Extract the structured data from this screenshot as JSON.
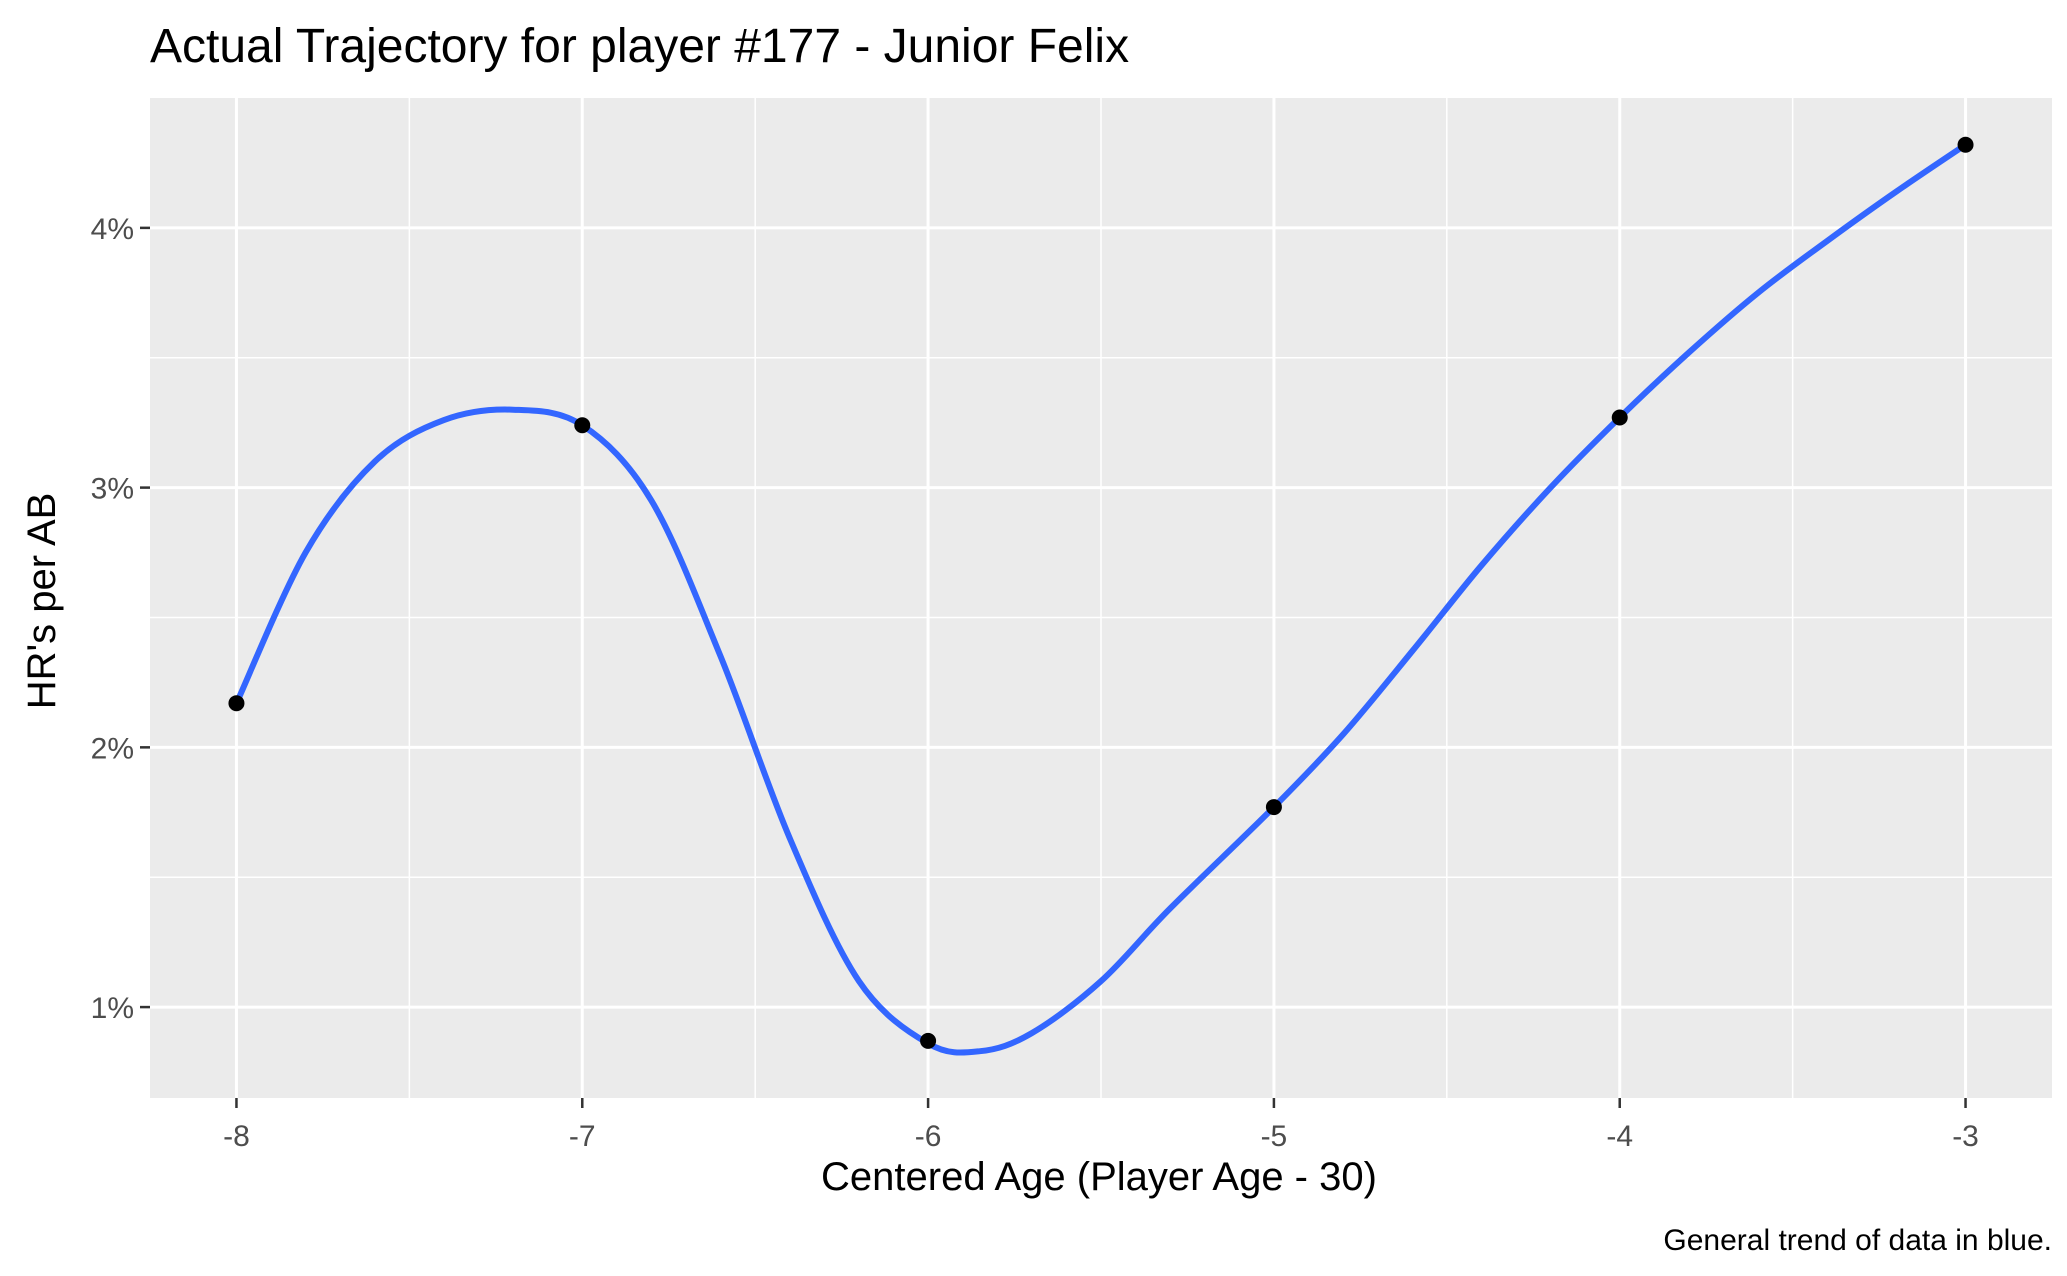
{
  "chart_data": {
    "type": "scatter",
    "title": "Actual Trajectory for player #177 - Junior Felix",
    "xlabel": "Centered Age (Player Age - 30)",
    "ylabel": "HR's per AB",
    "caption": "General trend of data in blue.",
    "xlim": [
      -8.25,
      -2.75
    ],
    "ylim": [
      0.65,
      4.5
    ],
    "x_ticks": [
      -8,
      -7,
      -6,
      -5,
      -4,
      -3
    ],
    "x_tick_labels": [
      "-8",
      "-7",
      "-6",
      "-5",
      "-4",
      "-3"
    ],
    "y_ticks": [
      1,
      2,
      3,
      4
    ],
    "y_tick_labels": [
      "1%",
      "2%",
      "3%",
      "4%"
    ],
    "y_unit": "percent",
    "grid": true,
    "points": [
      {
        "x": -8,
        "y": 2.17
      },
      {
        "x": -7,
        "y": 3.24
      },
      {
        "x": -6,
        "y": 0.87
      },
      {
        "x": -5,
        "y": 1.77
      },
      {
        "x": -4,
        "y": 3.27
      },
      {
        "x": -3,
        "y": 4.32
      }
    ],
    "trend": {
      "color": "#3366FF",
      "description": "General trend",
      "x": [
        -8,
        -7.8,
        -7.6,
        -7.4,
        -7.2,
        -7.0,
        -6.8,
        -6.6,
        -6.4,
        -6.2,
        -6.0,
        -5.85,
        -5.7,
        -5.5,
        -5.3,
        -5.0,
        -4.8,
        -4.6,
        -4.4,
        -4.2,
        -4.0,
        -3.8,
        -3.6,
        -3.4,
        -3.2,
        -3.0
      ],
      "y": [
        2.17,
        2.75,
        3.1,
        3.26,
        3.3,
        3.24,
        2.95,
        2.35,
        1.65,
        1.1,
        0.86,
        0.83,
        0.9,
        1.1,
        1.38,
        1.77,
        2.05,
        2.37,
        2.7,
        3.0,
        3.27,
        3.52,
        3.75,
        3.95,
        4.14,
        4.32
      ]
    },
    "colors": {
      "panel": "#EBEBEB",
      "grid": "#FFFFFF",
      "point": "#000000",
      "line": "#3366FF"
    }
  }
}
